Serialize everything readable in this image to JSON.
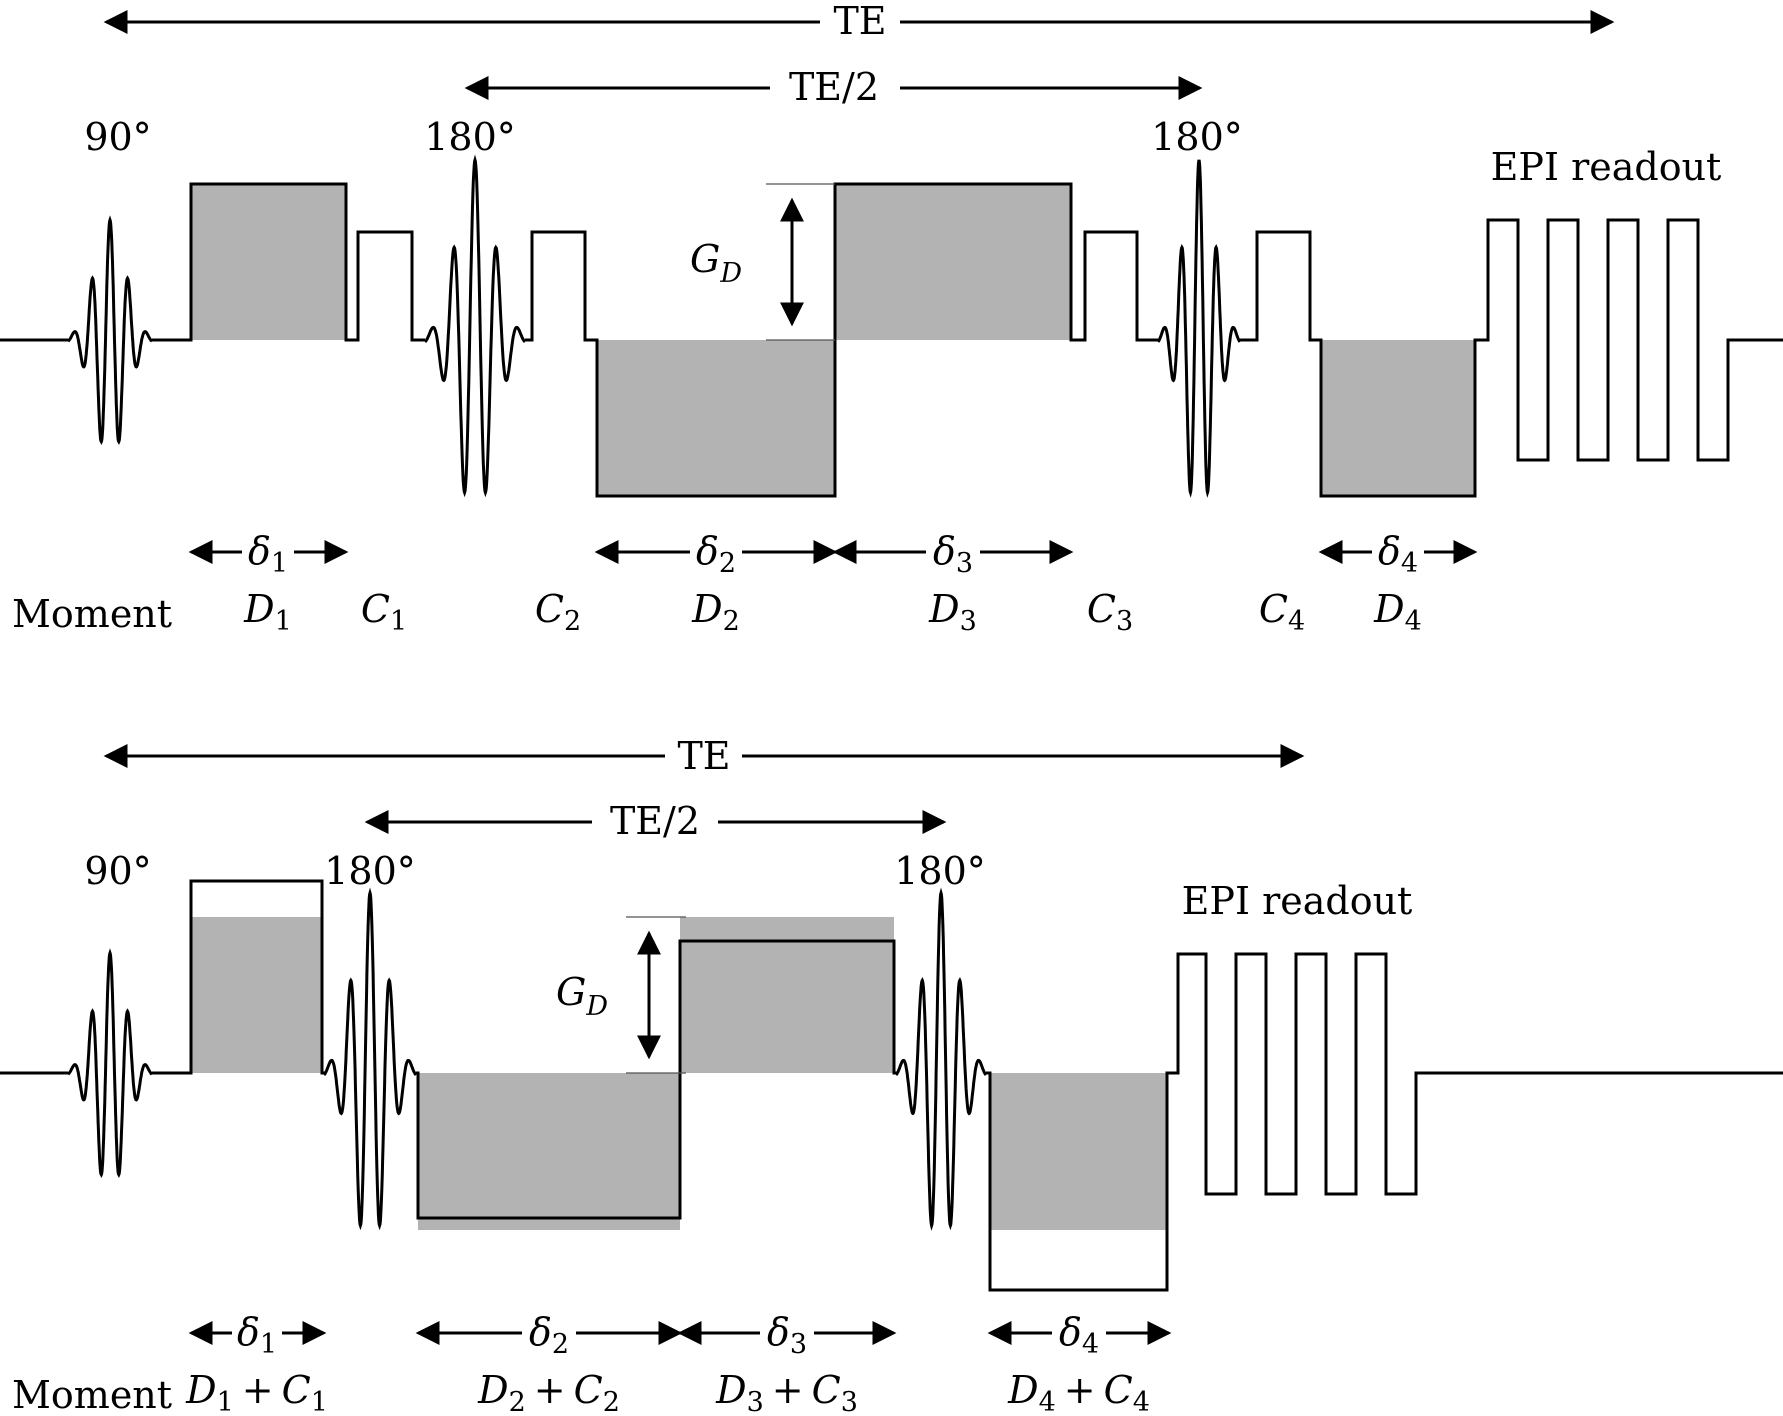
{
  "top": {
    "te_label": "TE",
    "te_half_label": "TE/2",
    "rf_90_label": "90°",
    "rf_180a_label": "180°",
    "rf_180b_label": "180°",
    "epi_label": "EPI readout",
    "gd_label": {
      "main": "G",
      "sub": "D"
    },
    "moment_label": "Moment",
    "durations": [
      {
        "main": "δ",
        "sub": "1"
      },
      {
        "main": "δ",
        "sub": "2"
      },
      {
        "main": "δ",
        "sub": "3"
      },
      {
        "main": "δ",
        "sub": "4"
      }
    ],
    "moments": [
      {
        "main": "D",
        "sub": "1"
      },
      {
        "main": "C",
        "sub": "1"
      },
      {
        "main": "C",
        "sub": "2"
      },
      {
        "main": "D",
        "sub": "2"
      },
      {
        "main": "D",
        "sub": "3"
      },
      {
        "main": "C",
        "sub": "3"
      },
      {
        "main": "C",
        "sub": "4"
      },
      {
        "main": "D",
        "sub": "4"
      }
    ]
  },
  "bottom": {
    "te_label": "TE",
    "te_half_label": "TE/2",
    "rf_90_label": "90°",
    "rf_180a_label": "180°",
    "rf_180b_label": "180°",
    "epi_label": "EPI readout",
    "gd_label": {
      "main": "G",
      "sub": "D"
    },
    "moment_label": "Moment",
    "durations": [
      {
        "main": "δ",
        "sub": "1"
      },
      {
        "main": "δ",
        "sub": "2"
      },
      {
        "main": "δ",
        "sub": "3"
      },
      {
        "main": "δ",
        "sub": "4"
      }
    ],
    "moments": [
      {
        "a": "D",
        "as": "1",
        "op": "+",
        "b": "C",
        "bs": "1"
      },
      {
        "a": "D",
        "as": "2",
        "op": "+",
        "b": "C",
        "bs": "2"
      },
      {
        "a": "D",
        "as": "3",
        "op": "+",
        "b": "C",
        "bs": "3"
      },
      {
        "a": "D",
        "as": "4",
        "op": "+",
        "b": "C",
        "bs": "4"
      }
    ]
  },
  "colors": {
    "shade": "#b3b3b3",
    "line": "#000000"
  }
}
